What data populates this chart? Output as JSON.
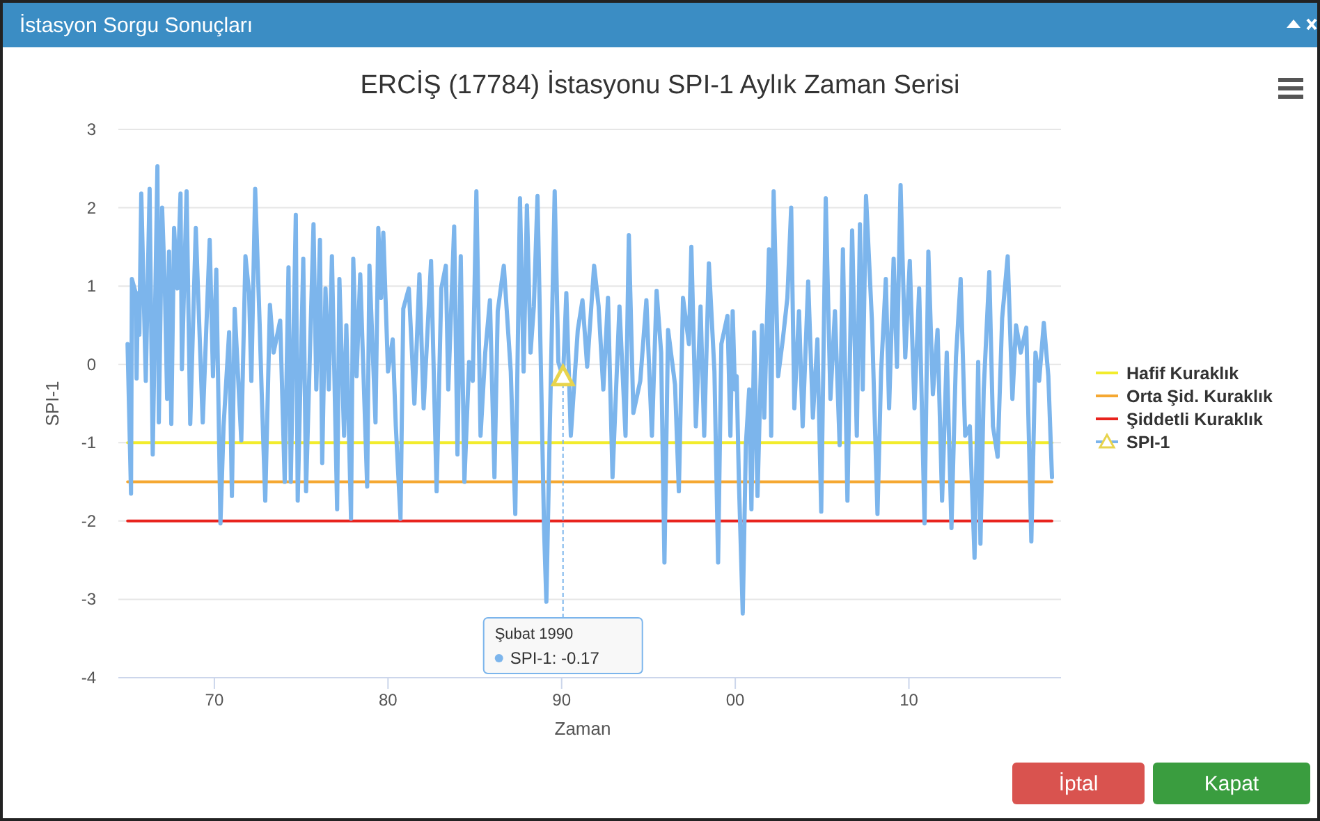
{
  "chart_data": {
    "type": "line",
    "title": "ERCİŞ (17784) İstasyonu SPI-1 Aylık Zaman Serisi",
    "xlabel": "Zaman",
    "ylabel": "SPI-1",
    "xlim": [
      1964.47,
      2018.76
    ],
    "xticks": [
      {
        "value": 1970,
        "label": "70"
      },
      {
        "value": 1980,
        "label": "80"
      },
      {
        "value": 1990,
        "label": "90"
      },
      {
        "value": 2000,
        "label": "00"
      },
      {
        "value": 2010,
        "label": "10"
      }
    ],
    "ylim": [
      -4,
      3
    ],
    "yticks": [
      -4,
      -3,
      -2,
      -1,
      0,
      1,
      2,
      3
    ],
    "grid": "y",
    "legend": "right",
    "annotations": [
      "İstasyon Sorgu Sonuçları",
      "İptal",
      "Kapat",
      {
        "text": "Şubat 1990\nSPI-1: -0.17",
        "x": 1990.08,
        "y": -0.17
      }
    ],
    "series": [
      {
        "name": "Hafif Kuraklık",
        "color": "#f2ec2c",
        "x": [
          1965.0,
          2018.24
        ],
        "values": [
          -1,
          -1
        ]
      },
      {
        "name": "Orta Şid. Kuraklık",
        "color": "#f5a832",
        "x": [
          1965.0,
          2018.24
        ],
        "values": [
          -1.5,
          -1.5
        ]
      },
      {
        "name": "Şiddetli Kuraklık",
        "color": "#e8231d",
        "x": [
          1965.0,
          2018.24
        ],
        "values": [
          -2,
          -2
        ]
      },
      {
        "name": "SPI-1",
        "color": "#7cb5ec",
        "x": [
          1965.0,
          1965.2,
          1965.25,
          1965.47,
          1965.52,
          1965.6,
          1965.68,
          1965.79,
          1966.05,
          1966.27,
          1966.45,
          1966.72,
          1966.8,
          1966.99,
          1967.15,
          1967.28,
          1967.39,
          1967.52,
          1967.68,
          1967.87,
          1968.05,
          1968.13,
          1968.4,
          1968.61,
          1968.93,
          1969.33,
          1969.73,
          1969.92,
          1970.11,
          1970.35,
          1970.53,
          1970.85,
          1971.01,
          1971.17,
          1971.55,
          1971.79,
          1972.0,
          1972.13,
          1972.35,
          1972.61,
          1972.72,
          1972.93,
          1973.2,
          1973.41,
          1973.79,
          1974.05,
          1974.27,
          1974.4,
          1974.69,
          1974.8,
          1975.12,
          1975.28,
          1975.71,
          1975.87,
          1976.08,
          1976.21,
          1976.4,
          1976.59,
          1976.77,
          1977.07,
          1977.2,
          1977.47,
          1977.6,
          1977.87,
          1978.0,
          1978.19,
          1978.4,
          1978.8,
          1978.93,
          1979.28,
          1979.44,
          1979.6,
          1979.73,
          1980.0,
          1980.27,
          1980.45,
          1980.72,
          1980.88,
          1981.2,
          1981.52,
          1981.81,
          1982.05,
          1982.48,
          1982.8,
          1983.07,
          1983.33,
          1983.47,
          1983.81,
          1984.0,
          1984.19,
          1984.4,
          1984.67,
          1984.88,
          1985.09,
          1985.33,
          1985.6,
          1985.87,
          1986.13,
          1986.32,
          1986.67,
          1987.07,
          1987.33,
          1987.6,
          1987.81,
          1988.0,
          1988.21,
          1988.4,
          1988.61,
          1988.83,
          1988.99,
          1989.12,
          1989.31,
          1989.6,
          1989.81,
          1990.08,
          1990.27,
          1990.53,
          1990.93,
          1991.2,
          1991.47,
          1991.87,
          1992.13,
          1992.4,
          1992.67,
          1992.93,
          1993.33,
          1993.68,
          1993.87,
          1994.13,
          1994.53,
          1994.88,
          1995.2,
          1995.47,
          1995.73,
          1995.92,
          1996.13,
          1996.53,
          1996.75,
          1996.99,
          1997.33,
          1997.47,
          1997.73,
          1998.0,
          1998.21,
          1998.48,
          1998.8,
          1999.01,
          1999.2,
          1999.55,
          1999.72,
          1999.85,
          1999.98,
          2000.08,
          2000.21,
          2000.43,
          2000.61,
          2000.8,
          2000.93,
          2001.09,
          2001.28,
          2001.54,
          2001.67,
          2001.94,
          2002.07,
          2002.21,
          2002.47,
          2002.74,
          2003.0,
          2003.22,
          2003.4,
          2003.67,
          2003.88,
          2004.2,
          2004.47,
          2004.73,
          2004.95,
          2005.21,
          2005.48,
          2005.74,
          2006.01,
          2006.2,
          2006.46,
          2006.73,
          2007.0,
          2007.18,
          2007.34,
          2007.53,
          2007.87,
          2008.19,
          2008.4,
          2008.67,
          2008.86,
          2009.12,
          2009.31,
          2009.52,
          2009.79,
          2010.05,
          2010.32,
          2010.59,
          2010.9,
          2011.12,
          2011.38,
          2011.65,
          2011.91,
          2012.18,
          2012.45,
          2012.71,
          2012.98,
          2013.24,
          2013.51,
          2013.78,
          2013.99,
          2014.12,
          2014.31,
          2014.63,
          2014.84,
          2015.11,
          2015.37,
          2015.69,
          2015.96,
          2016.17,
          2016.44,
          2016.76,
          2017.05,
          2017.29,
          2017.5,
          2017.77,
          2018.03,
          2018.24
        ],
        "values": [
          0.26,
          -1.65,
          1.09,
          0.91,
          -0.18,
          0.91,
          0.38,
          2.18,
          -0.21,
          2.24,
          -1.15,
          2.53,
          -0.74,
          2.0,
          0.97,
          -0.44,
          1.44,
          -0.76,
          1.74,
          0.97,
          2.18,
          -0.06,
          2.21,
          -0.76,
          1.74,
          -0.74,
          1.59,
          -0.15,
          1.21,
          -2.03,
          -0.79,
          0.41,
          -1.68,
          0.71,
          -0.97,
          1.38,
          0.91,
          -0.21,
          2.24,
          0.5,
          -0.32,
          -1.74,
          0.76,
          0.15,
          0.56,
          -1.5,
          1.24,
          -1.5,
          1.91,
          -1.74,
          1.35,
          -1.62,
          1.79,
          -0.32,
          1.59,
          -1.26,
          0.97,
          -0.32,
          1.38,
          -1.85,
          1.09,
          -0.91,
          0.5,
          -1.97,
          1.35,
          -0.15,
          1.15,
          -1.56,
          1.26,
          -0.74,
          1.74,
          0.85,
          1.68,
          -0.09,
          0.32,
          -0.79,
          -1.97,
          0.71,
          0.97,
          -0.5,
          1.15,
          -0.56,
          1.32,
          -1.62,
          0.97,
          1.26,
          -0.32,
          1.76,
          -1.15,
          1.38,
          -1.5,
          0.03,
          -0.21,
          2.21,
          -0.91,
          0.15,
          0.82,
          -1.44,
          0.68,
          1.26,
          -0.09,
          -1.91,
          2.12,
          -0.09,
          2.03,
          0.15,
          0.74,
          2.15,
          -0.32,
          -2.12,
          -3.03,
          -0.91,
          2.21,
          0.03,
          -0.17,
          0.91,
          -0.91,
          0.44,
          0.82,
          -0.03,
          1.26,
          0.74,
          -0.32,
          0.85,
          -1.44,
          0.74,
          -0.91,
          1.65,
          -0.62,
          -0.21,
          0.82,
          -0.91,
          0.94,
          0.15,
          -2.53,
          0.44,
          -0.26,
          -1.62,
          0.85,
          0.26,
          1.5,
          -0.79,
          0.74,
          -0.91,
          1.29,
          -0.09,
          -2.53,
          0.26,
          0.62,
          -0.91,
          0.68,
          -0.32,
          -0.15,
          -1.5,
          -3.18,
          -1.03,
          -0.32,
          -1.85,
          0.41,
          -1.68,
          0.5,
          -0.68,
          1.47,
          -0.91,
          2.21,
          -0.15,
          0.32,
          0.85,
          2.0,
          -0.56,
          0.68,
          -0.79,
          1.06,
          -0.68,
          0.32,
          -1.88,
          2.12,
          -0.44,
          0.68,
          -1.03,
          1.47,
          -1.74,
          1.71,
          -0.91,
          1.79,
          -0.32,
          2.15,
          0.56,
          -1.91,
          -0.09,
          1.09,
          -0.56,
          1.35,
          -0.03,
          2.29,
          0.09,
          1.32,
          -0.56,
          0.97,
          -2.03,
          1.44,
          -0.38,
          0.44,
          -1.74,
          0.15,
          -2.09,
          0.09,
          1.09,
          -0.91,
          -0.79,
          -2.47,
          0.03,
          -2.29,
          -0.32,
          1.18,
          -0.79,
          -1.18,
          0.59,
          1.38,
          -0.44,
          0.5,
          0.15,
          0.47,
          -2.26,
          0.15,
          -0.21,
          0.53,
          -0.15,
          -1.44
        ]
      }
    ]
  }
}
